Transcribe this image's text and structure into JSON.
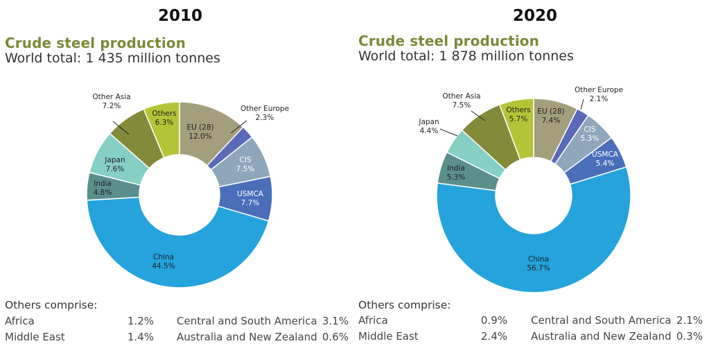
{
  "chart_data": [
    {
      "type": "pie",
      "year": "2010",
      "title": "Crude steel production",
      "subtitle": "World total: 1 435 million tonnes",
      "slices": [
        {
          "name": "EU (28)",
          "value_label": "12.0%",
          "value": 12.0,
          "color": "#a39e7c"
        },
        {
          "name": "Other Europe",
          "value_label": "2.3%",
          "value": 2.3,
          "color": "#5a6ab8"
        },
        {
          "name": "CIS",
          "value_label": "7.5%",
          "value": 7.5,
          "color": "#8fa6bb"
        },
        {
          "name": "USMCA",
          "value_label": "7.7%",
          "value": 7.7,
          "color": "#4a6eba"
        },
        {
          "name": "China",
          "value_label": "44.5%",
          "value": 44.5,
          "color": "#24a3dc"
        },
        {
          "name": "India",
          "value_label": "4.8%",
          "value": 4.8,
          "color": "#5b8f8c"
        },
        {
          "name": "Japan",
          "value_label": "7.6%",
          "value": 7.6,
          "color": "#86cfc4"
        },
        {
          "name": "Other Asia",
          "value_label": "7.2%",
          "value": 7.2,
          "color": "#838a3a"
        },
        {
          "name": "Others",
          "value_label": "6.3%",
          "value": 6.3,
          "color": "#b5c437"
        }
      ],
      "others_heading": "Others comprise:",
      "others": [
        {
          "name": "Africa",
          "value": "1.2%"
        },
        {
          "name": "Middle East",
          "value": "1.4%"
        },
        {
          "name": "Central and South America",
          "value": "3.1%"
        },
        {
          "name": "Australia and New Zealand",
          "value": "0.6%"
        }
      ]
    },
    {
      "type": "pie",
      "year": "2020",
      "title": "Crude steel production",
      "subtitle": "World total: 1 878 million tonnes",
      "slices": [
        {
          "name": "EU (28)",
          "value_label": "7.4%",
          "value": 7.4,
          "color": "#a39e7c"
        },
        {
          "name": "Other Europe",
          "value_label": "2.1%",
          "value": 2.1,
          "color": "#5a6ab8"
        },
        {
          "name": "CIS",
          "value_label": "5.3%",
          "value": 5.3,
          "color": "#8fa6bb"
        },
        {
          "name": "USMCA",
          "value_label": "5.4%",
          "value": 5.4,
          "color": "#4a6eba"
        },
        {
          "name": "China",
          "value_label": "56.7%",
          "value": 56.7,
          "color": "#24a3dc"
        },
        {
          "name": "India",
          "value_label": "5.3%",
          "value": 5.3,
          "color": "#5b8f8c"
        },
        {
          "name": "Japan",
          "value_label": "4.4%",
          "value": 4.4,
          "color": "#86cfc4"
        },
        {
          "name": "Other Asia",
          "value_label": "7.5%",
          "value": 7.5,
          "color": "#838a3a"
        },
        {
          "name": "Others",
          "value_label": "5.7%",
          "value": 5.7,
          "color": "#b5c437"
        }
      ],
      "others_heading": "Others comprise:",
      "others": [
        {
          "name": "Africa",
          "value": "0.9%"
        },
        {
          "name": "Middle East",
          "value": "2.4%"
        },
        {
          "name": "Central and South America",
          "value": "2.1%"
        },
        {
          "name": "Australia and New Zealand",
          "value": "0.3%"
        }
      ]
    }
  ]
}
